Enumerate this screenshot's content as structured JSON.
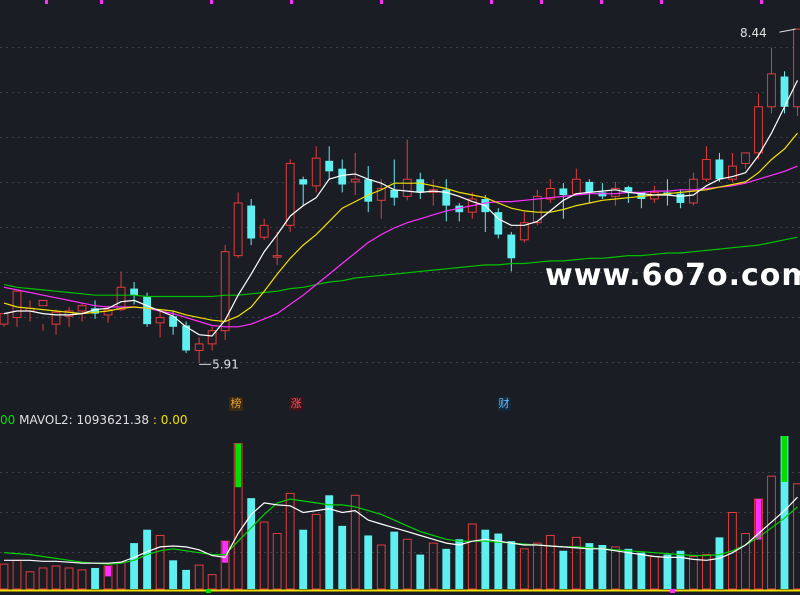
{
  "watermark": "www.6o7o.com",
  "price_labels": {
    "high": "8.44",
    "low": "5.91"
  },
  "event_markers": [
    {
      "text": "榜",
      "color": "#e8a23a",
      "bg": "#3a2a12"
    },
    {
      "text": "涨",
      "color": "#ff5060",
      "bg": "#3a1418"
    },
    {
      "text": "财",
      "color": "#6ab8ff",
      "bg": "#122838"
    }
  ],
  "volume_header": {
    "prefix": "00",
    "label": "MAVOL2: 1093621.38",
    "sep": ":",
    "value": "0.00",
    "colors": {
      "prefix": "#00e000",
      "label": "#e0e0e0",
      "value": "#f0e000"
    }
  },
  "colors": {
    "up": "#e03c3c",
    "down": "#5ef0f0",
    "ma5": "#ffffff",
    "ma10": "#f0e000",
    "ma20": "#ff30ff",
    "ma60": "#00c000",
    "vol_ma1": "#ffffff",
    "vol_ma2": "#00d000",
    "grid": "#3a3f4a",
    "special_magenta": "#ff30ff",
    "special_green": "#00e000"
  },
  "chart_data": [
    {
      "type": "candlestick",
      "ylim": [
        5.7,
        8.6
      ],
      "ohlc": [
        [
          6.2,
          6.28,
          6.18,
          6.25
        ],
        [
          6.25,
          6.45,
          6.3,
          6.18
        ],
        [
          6.3,
          6.32,
          6.38,
          6.22
        ],
        [
          6.34,
          6.38,
          6.2,
          6.15
        ],
        [
          6.2,
          6.29,
          6.31,
          6.12
        ],
        [
          6.26,
          6.3,
          6.33,
          6.18
        ],
        [
          6.3,
          6.34,
          6.36,
          6.22
        ],
        [
          6.32,
          6.28,
          6.38,
          6.24
        ],
        [
          6.27,
          6.31,
          6.34,
          6.21
        ],
        [
          6.31,
          6.48,
          6.6,
          6.3
        ],
        [
          6.47,
          6.42,
          6.52,
          6.35
        ],
        [
          6.41,
          6.2,
          6.44,
          6.18
        ],
        [
          6.21,
          6.25,
          6.3,
          6.1
        ],
        [
          6.26,
          6.18,
          6.3,
          6.12
        ],
        [
          6.19,
          6.0,
          6.22,
          5.98
        ],
        [
          6.0,
          6.05,
          6.1,
          5.91
        ],
        [
          6.05,
          6.15,
          6.18,
          6.0
        ],
        [
          6.15,
          6.75,
          6.8,
          6.08
        ],
        [
          6.72,
          7.12,
          7.2,
          6.7
        ],
        [
          7.1,
          6.85,
          7.15,
          6.8
        ],
        [
          6.86,
          6.95,
          7.0,
          6.84
        ],
        [
          6.72,
          6.72,
          6.9,
          6.65
        ],
        [
          6.95,
          7.42,
          7.45,
          6.9
        ],
        [
          7.3,
          7.26,
          7.32,
          7.1
        ],
        [
          7.25,
          7.46,
          7.55,
          7.2
        ],
        [
          7.44,
          7.36,
          7.55,
          7.3
        ],
        [
          7.38,
          7.26,
          7.45,
          7.2
        ],
        [
          7.28,
          7.3,
          7.5,
          7.18
        ],
        [
          7.3,
          7.13,
          7.4,
          7.05
        ],
        [
          7.14,
          7.23,
          7.3,
          7.0
        ],
        [
          7.22,
          7.16,
          7.45,
          7.1
        ],
        [
          7.17,
          7.3,
          7.6,
          7.14
        ],
        [
          7.3,
          7.2,
          7.35,
          7.15
        ],
        [
          7.2,
          7.22,
          7.3,
          7.1
        ],
        [
          7.22,
          7.1,
          7.3,
          6.98
        ],
        [
          7.1,
          7.05,
          7.12,
          6.98
        ],
        [
          7.05,
          7.15,
          7.2,
          7.0
        ],
        [
          7.15,
          7.05,
          7.18,
          6.9
        ],
        [
          7.05,
          6.88,
          7.08,
          6.85
        ],
        [
          6.88,
          6.7,
          6.9,
          6.6
        ],
        [
          6.84,
          6.97,
          7.05,
          6.82
        ],
        [
          6.97,
          7.17,
          7.22,
          6.95
        ],
        [
          7.15,
          7.23,
          7.3,
          7.12
        ],
        [
          7.23,
          7.18,
          7.27,
          7.0
        ],
        [
          7.19,
          7.3,
          7.38,
          7.18
        ],
        [
          7.28,
          7.2,
          7.3,
          7.12
        ],
        [
          7.2,
          7.17,
          7.27,
          7.15
        ],
        [
          7.17,
          7.23,
          7.28,
          7.1
        ],
        [
          7.24,
          7.2,
          7.25,
          7.12
        ],
        [
          7.2,
          7.15,
          7.2,
          7.08
        ],
        [
          7.15,
          7.2,
          7.25,
          7.12
        ],
        [
          7.2,
          7.18,
          7.3,
          7.1
        ],
        [
          7.19,
          7.12,
          7.22,
          7.08
        ],
        [
          7.12,
          7.3,
          7.35,
          7.1
        ],
        [
          7.3,
          7.45,
          7.55,
          7.28
        ],
        [
          7.45,
          7.3,
          7.5,
          7.28
        ],
        [
          7.3,
          7.4,
          7.5,
          7.28
        ],
        [
          7.42,
          7.5,
          7.5,
          7.38
        ],
        [
          7.5,
          7.85,
          7.95,
          7.45
        ],
        [
          7.85,
          8.1,
          8.3,
          7.8
        ],
        [
          8.08,
          7.85,
          8.12,
          7.8
        ],
        [
          7.85,
          8.44,
          8.44,
          7.78
        ]
      ],
      "ma5": [
        6.28,
        6.3,
        6.3,
        6.28,
        6.27,
        6.27,
        6.28,
        6.31,
        6.32,
        6.37,
        6.38,
        6.34,
        6.3,
        6.26,
        6.18,
        6.12,
        6.11,
        6.23,
        6.42,
        6.58,
        6.75,
        6.88,
        7.02,
        7.1,
        7.16,
        7.3,
        7.33,
        7.34,
        7.3,
        7.27,
        7.22,
        7.21,
        7.2,
        7.21,
        7.2,
        7.17,
        7.13,
        7.1,
        7.0,
        6.95,
        6.95,
        6.98,
        7.06,
        7.14,
        7.19,
        7.2,
        7.21,
        7.22,
        7.2,
        7.19,
        7.18,
        7.18,
        7.17,
        7.18,
        7.25,
        7.3,
        7.32,
        7.35,
        7.48,
        7.65,
        7.85,
        8.05
      ],
      "ma10": [
        6.36,
        6.33,
        6.32,
        6.31,
        6.3,
        6.29,
        6.28,
        6.29,
        6.3,
        6.32,
        6.33,
        6.32,
        6.31,
        6.3,
        6.27,
        6.25,
        6.23,
        6.22,
        6.26,
        6.33,
        6.45,
        6.58,
        6.7,
        6.8,
        6.88,
        6.98,
        7.08,
        7.13,
        7.18,
        7.22,
        7.27,
        7.27,
        7.27,
        7.25,
        7.23,
        7.2,
        7.18,
        7.16,
        7.12,
        7.08,
        7.06,
        7.05,
        7.05,
        7.07,
        7.1,
        7.12,
        7.14,
        7.15,
        7.16,
        7.17,
        7.18,
        7.19,
        7.2,
        7.21,
        7.22,
        7.24,
        7.26,
        7.28,
        7.35,
        7.45,
        7.53,
        7.65
      ],
      "ma20": [
        6.48,
        6.46,
        6.44,
        6.42,
        6.4,
        6.38,
        6.36,
        6.34,
        6.33,
        6.33,
        6.33,
        6.32,
        6.3,
        6.28,
        6.25,
        6.22,
        6.19,
        6.18,
        6.18,
        6.2,
        6.24,
        6.28,
        6.35,
        6.42,
        6.5,
        6.58,
        6.66,
        6.74,
        6.82,
        6.88,
        6.93,
        6.97,
        7.0,
        7.03,
        7.06,
        7.08,
        7.1,
        7.12,
        7.13,
        7.13,
        7.14,
        7.15,
        7.16,
        7.17,
        7.18,
        7.19,
        7.19,
        7.19,
        7.2,
        7.2,
        7.21,
        7.21,
        7.22,
        7.22,
        7.23,
        7.24,
        7.25,
        7.27,
        7.3,
        7.33,
        7.36,
        7.4
      ],
      "ma60": [
        6.5,
        6.48,
        6.47,
        6.46,
        6.45,
        6.44,
        6.43,
        6.42,
        6.42,
        6.42,
        6.42,
        6.41,
        6.41,
        6.41,
        6.41,
        6.41,
        6.41,
        6.42,
        6.42,
        6.43,
        6.44,
        6.45,
        6.47,
        6.48,
        6.5,
        6.52,
        6.53,
        6.55,
        6.56,
        6.57,
        6.58,
        6.59,
        6.6,
        6.61,
        6.62,
        6.63,
        6.64,
        6.65,
        6.65,
        6.66,
        6.66,
        6.67,
        6.68,
        6.68,
        6.69,
        6.7,
        6.7,
        6.71,
        6.72,
        6.72,
        6.73,
        6.74,
        6.74,
        6.75,
        6.76,
        6.77,
        6.78,
        6.79,
        6.8,
        6.82,
        6.84,
        6.86
      ]
    },
    {
      "type": "bar",
      "title": "MAVOL2: 1093621.38",
      "ylim": [
        0,
        160
      ],
      "values": [
        26,
        30,
        18,
        22,
        24,
        22,
        20,
        22,
        24,
        28,
        48,
        62,
        56,
        30,
        20,
        25,
        15,
        50,
        152,
        95,
        70,
        58,
        100,
        62,
        78,
        98,
        66,
        98,
        56,
        46,
        60,
        52,
        36,
        48,
        42,
        52,
        68,
        62,
        58,
        50,
        42,
        48,
        56,
        40,
        54,
        48,
        46,
        44,
        42,
        38,
        34,
        36,
        40,
        34,
        36,
        54,
        80,
        58,
        94,
        118,
        160,
        110
      ],
      "ma1": [
        30,
        30,
        30,
        29,
        29,
        28,
        27,
        27,
        27,
        28,
        33,
        39,
        44,
        45,
        44,
        41,
        35,
        33,
        58,
        78,
        90,
        88,
        87,
        80,
        82,
        84,
        80,
        82,
        72,
        68,
        64,
        60,
        56,
        52,
        48,
        46,
        50,
        52,
        50,
        48,
        46,
        46,
        45,
        44,
        43,
        42,
        42,
        40,
        38,
        36,
        34,
        33,
        33,
        31,
        30,
        32,
        38,
        46,
        58,
        70,
        82,
        96
      ],
      "ma2": [
        38,
        37,
        36,
        34,
        32,
        30,
        28,
        27,
        26,
        27,
        30,
        36,
        40,
        42,
        40,
        38,
        36,
        36,
        50,
        64,
        78,
        90,
        94,
        92,
        90,
        88,
        88,
        86,
        82,
        78,
        72,
        66,
        60,
        56,
        52,
        50,
        50,
        50,
        49,
        48,
        47,
        46,
        45,
        44,
        44,
        43,
        42,
        41,
        40,
        39,
        38,
        37,
        36,
        35,
        35,
        36,
        40,
        46,
        54,
        64,
        74,
        86
      ],
      "special_bars": [
        {
          "index": 8,
          "color": "magenta"
        },
        {
          "index": 17,
          "color": "magenta"
        },
        {
          "index": 18,
          "color": "green"
        },
        {
          "index": 58,
          "color": "magenta"
        },
        {
          "index": 60,
          "color": "green"
        }
      ]
    }
  ]
}
